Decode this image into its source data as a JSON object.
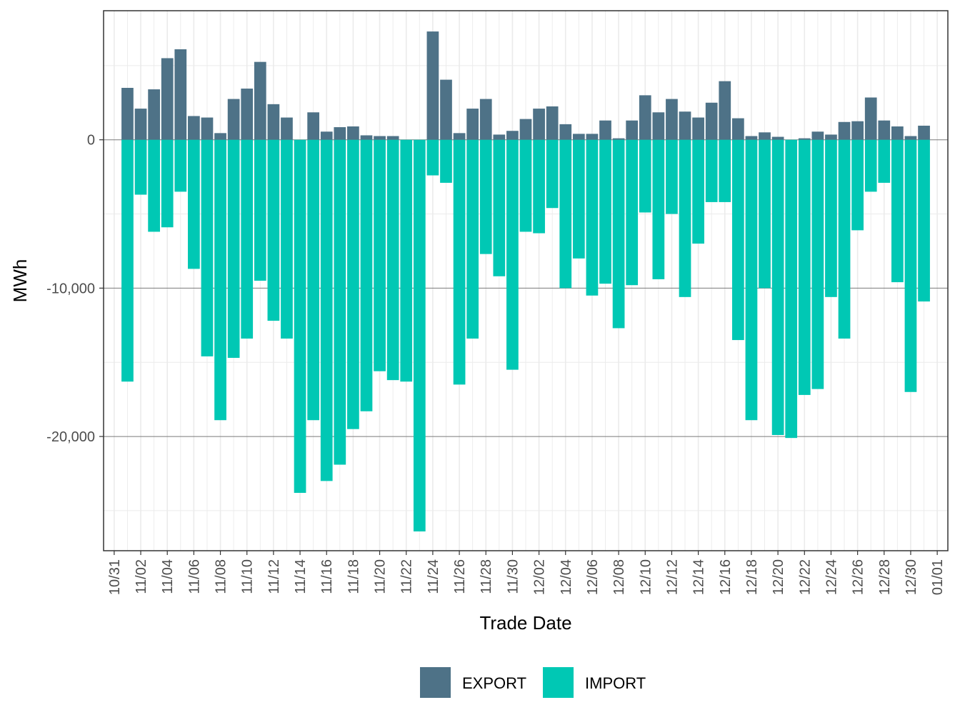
{
  "chart_data": {
    "type": "bar",
    "stacked": true,
    "title": "",
    "xlabel": "Trade Date",
    "ylabel": "MWh",
    "ylim": [
      -27700,
      8700
    ],
    "y_ticks": [
      0,
      -10000,
      -20000
    ],
    "y_tick_labels": [
      "0",
      "-10,000",
      "-20,000"
    ],
    "x_tick_labels": [
      "10/31",
      "11/02",
      "11/04",
      "11/06",
      "11/08",
      "11/10",
      "11/12",
      "11/14",
      "11/16",
      "11/18",
      "11/20",
      "11/22",
      "11/24",
      "11/26",
      "11/28",
      "11/30",
      "12/02",
      "12/04",
      "12/06",
      "12/08",
      "12/10",
      "12/12",
      "12/14",
      "12/16",
      "12/18",
      "12/20",
      "12/22",
      "12/24",
      "12/26",
      "12/28",
      "12/30",
      "01/01"
    ],
    "x_tick_day_index": [
      0,
      2,
      4,
      6,
      8,
      10,
      12,
      14,
      16,
      18,
      20,
      22,
      24,
      26,
      28,
      30,
      32,
      34,
      36,
      38,
      40,
      42,
      44,
      46,
      48,
      50,
      52,
      54,
      56,
      58,
      60,
      62
    ],
    "start_day_index": 1,
    "grid": true,
    "legend_position": "bottom",
    "series": [
      {
        "name": "EXPORT",
        "color": "#4e7287",
        "values": [
          3500,
          2100,
          3400,
          5500,
          6100,
          1600,
          1500,
          450,
          2750,
          3450,
          5250,
          2400,
          1500,
          0,
          1850,
          550,
          850,
          900,
          300,
          250,
          250,
          0,
          0,
          7300,
          4050,
          450,
          2100,
          2750,
          350,
          600,
          1400,
          2100,
          2250,
          1050,
          400,
          400,
          1300,
          100,
          1300,
          3000,
          1850,
          2750,
          1900,
          1500,
          2500,
          3950,
          1450,
          250,
          500,
          200,
          0,
          100,
          550,
          350,
          1200,
          1250,
          2850,
          1300,
          900,
          250,
          950
        ]
      },
      {
        "name": "IMPORT",
        "color": "#00c8b4",
        "values": [
          -16300,
          -3700,
          -6200,
          -5900,
          -3500,
          -8700,
          -14600,
          -18900,
          -14700,
          -13400,
          -9500,
          -12200,
          -13400,
          -23800,
          -18900,
          -23000,
          -21900,
          -19500,
          -18300,
          -15600,
          -16200,
          -16300,
          -26400,
          -2400,
          -2900,
          -16500,
          -13400,
          -7700,
          -9200,
          -15500,
          -6200,
          -6300,
          -4600,
          -10000,
          -8000,
          -10500,
          -9700,
          -12700,
          -9800,
          -4900,
          -9400,
          -5000,
          -10600,
          -7000,
          -4200,
          -4200,
          -13500,
          -18900,
          -10000,
          -19900,
          -20100,
          -17200,
          -16800,
          -10600,
          -13400,
          -6100,
          -3500,
          -2900,
          -9600,
          -17000,
          -10900
        ]
      }
    ]
  }
}
